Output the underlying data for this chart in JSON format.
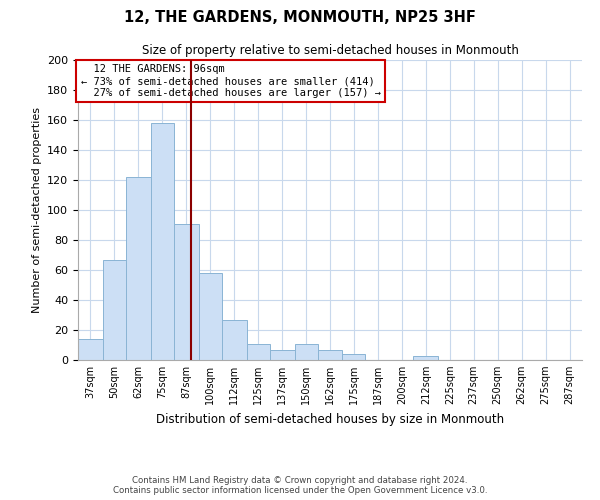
{
  "title": "12, THE GARDENS, MONMOUTH, NP25 3HF",
  "subtitle": "Size of property relative to semi-detached houses in Monmouth",
  "xlabel": "Distribution of semi-detached houses by size in Monmouth",
  "ylabel": "Number of semi-detached properties",
  "footer_line1": "Contains HM Land Registry data © Crown copyright and database right 2024.",
  "footer_line2": "Contains public sector information licensed under the Open Government Licence v3.0.",
  "bar_color": "#ccdff5",
  "bar_edge_color": "#8ab4d4",
  "property_line_color": "#8b0000",
  "property_value": 96,
  "property_label": "12 THE GARDENS: 96sqm",
  "pct_smaller": 73,
  "count_smaller": 414,
  "pct_larger": 27,
  "count_larger": 157,
  "annotation_box_edge_color": "#cc0000",
  "bin_labels": [
    "37sqm",
    "50sqm",
    "62sqm",
    "75sqm",
    "87sqm",
    "100sqm",
    "112sqm",
    "125sqm",
    "137sqm",
    "150sqm",
    "162sqm",
    "175sqm",
    "187sqm",
    "200sqm",
    "212sqm",
    "225sqm",
    "237sqm",
    "250sqm",
    "262sqm",
    "275sqm",
    "287sqm"
  ],
  "bin_edges": [
    37,
    50,
    62,
    75,
    87,
    100,
    112,
    125,
    137,
    150,
    162,
    175,
    187,
    200,
    212,
    225,
    237,
    250,
    262,
    275,
    287,
    300
  ],
  "counts": [
    14,
    67,
    122,
    158,
    91,
    58,
    27,
    11,
    7,
    11,
    7,
    4,
    0,
    0,
    3,
    0,
    0,
    0,
    0,
    0,
    0
  ],
  "ylim": [
    0,
    200
  ],
  "yticks": [
    0,
    20,
    40,
    60,
    80,
    100,
    120,
    140,
    160,
    180,
    200
  ],
  "background_color": "#ffffff",
  "grid_color": "#c8d8ec"
}
